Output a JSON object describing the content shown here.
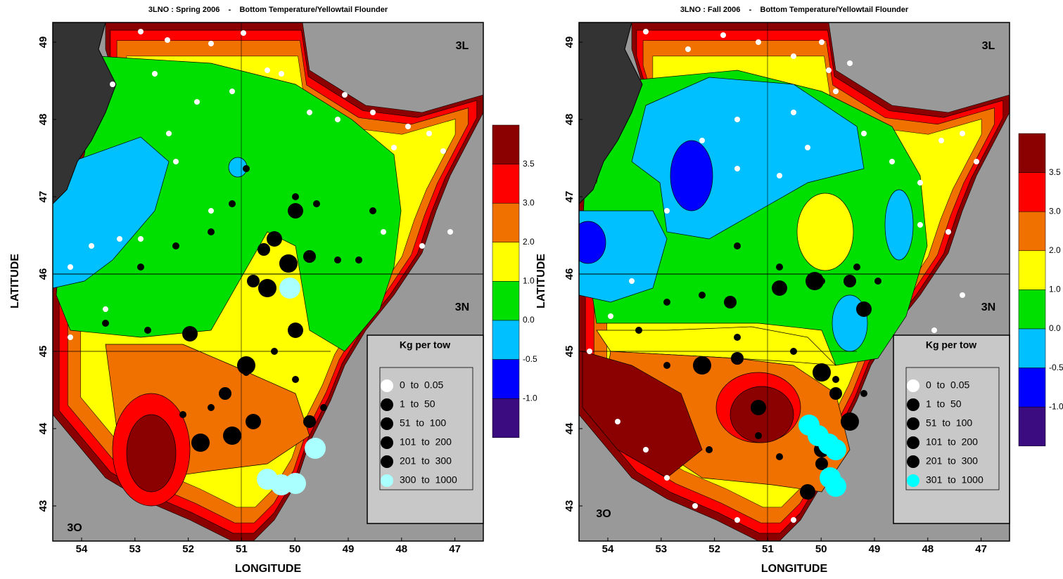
{
  "panels": [
    {
      "title": "3LNO : Spring 2006    -    Bottom Temperature/Yellowtail Flounder",
      "x_label": "LONGITUDE",
      "y_label": "LATITUDE",
      "x_ticks": [
        54,
        53,
        52,
        51,
        50,
        49,
        48,
        47
      ],
      "y_ticks": [
        43,
        44,
        45,
        46,
        47,
        48,
        49
      ],
      "regions": [
        "3L",
        "3N",
        "3O"
      ],
      "colorbar_labels": [
        "3.5",
        "3.0",
        "2.0",
        "1.0",
        "0.0",
        "-0.5",
        "-1.0"
      ],
      "legend": {
        "title": "Kg per tow",
        "items": [
          {
            "label": "0  to  0.05",
            "color": "#ffffff"
          },
          {
            "label": "1  to  50",
            "color": "#000000"
          },
          {
            "label": "51  to  100",
            "color": "#000000"
          },
          {
            "label": "101  to  200",
            "color": "#000000"
          },
          {
            "label": "201  to  300",
            "color": "#000000"
          },
          {
            "label": "300  to  1000",
            "color": "#aaffff"
          }
        ]
      }
    },
    {
      "title": "3LNO : Fall 2006    -    Bottom Temperature/Yellowtail Flounder",
      "x_label": "LONGITUDE",
      "y_label": "LATITUDE",
      "x_ticks": [
        54,
        53,
        52,
        51,
        50,
        49,
        48,
        47
      ],
      "y_ticks": [
        43,
        44,
        45,
        46,
        47,
        48,
        49
      ],
      "regions": [
        "3L",
        "3N",
        "3O"
      ],
      "colorbar_labels": [
        "3.5",
        "3.0",
        "2.0",
        "1.0",
        "0.0",
        "-0.5",
        "-1.0"
      ],
      "legend": {
        "title": "Kg per tow",
        "items": [
          {
            "label": "0  to  0.05",
            "color": "#ffffff"
          },
          {
            "label": "1  to  50",
            "color": "#000000"
          },
          {
            "label": "51  to  100",
            "color": "#000000"
          },
          {
            "label": "101  to  200",
            "color": "#000000"
          },
          {
            "label": "201  to  300",
            "color": "#000000"
          },
          {
            "label": "301  to  1000",
            "color": "#00ffff"
          }
        ]
      }
    }
  ]
}
